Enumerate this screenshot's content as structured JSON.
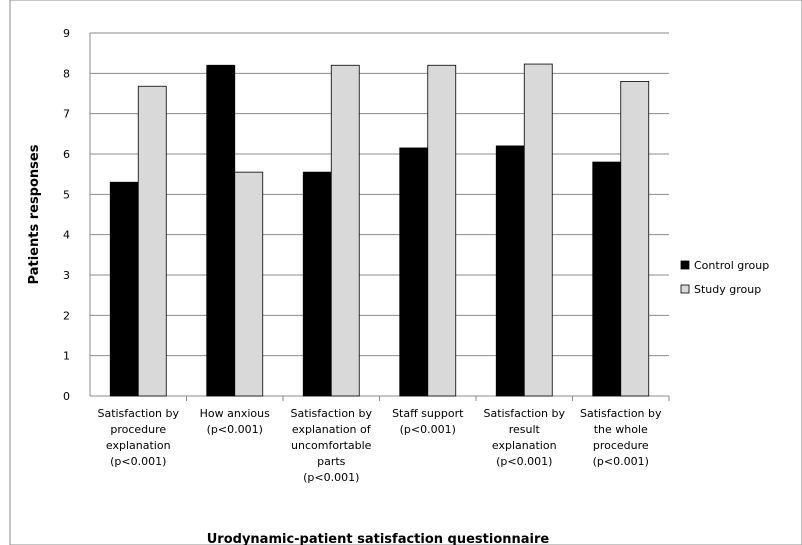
{
  "chart_data": {
    "type": "bar",
    "title": "",
    "xlabel": "Urodynamic-patient satisfaction questionnaire",
    "ylabel": "Patients responses",
    "ylim": [
      0,
      9
    ],
    "yticks": [
      0,
      1,
      2,
      3,
      4,
      5,
      6,
      7,
      8,
      9
    ],
    "grid": true,
    "legend_position": "right",
    "categories": [
      [
        "Satisfaction by",
        "procedure",
        "explanation",
        "(p<0.001)"
      ],
      [
        "How anxious",
        "(p<0.001)"
      ],
      [
        "Satisfaction by",
        "explanation of",
        "uncomfortable",
        "parts",
        "(p<0.001)"
      ],
      [
        "Staff support",
        "(p<0.001)"
      ],
      [
        "Satisfaction by",
        "result",
        "explanation",
        "(p<0.001)"
      ],
      [
        "Satisfaction by",
        "the whole",
        "procedure",
        "(p<0.001)"
      ]
    ],
    "series": [
      {
        "name": "Control group",
        "color": "#000000",
        "values": [
          5.3,
          8.2,
          5.55,
          6.15,
          6.2,
          5.8
        ]
      },
      {
        "name": "Study group",
        "color": "#d9d9d9",
        "values": [
          7.68,
          5.55,
          8.2,
          8.2,
          8.23,
          7.8
        ]
      }
    ]
  }
}
